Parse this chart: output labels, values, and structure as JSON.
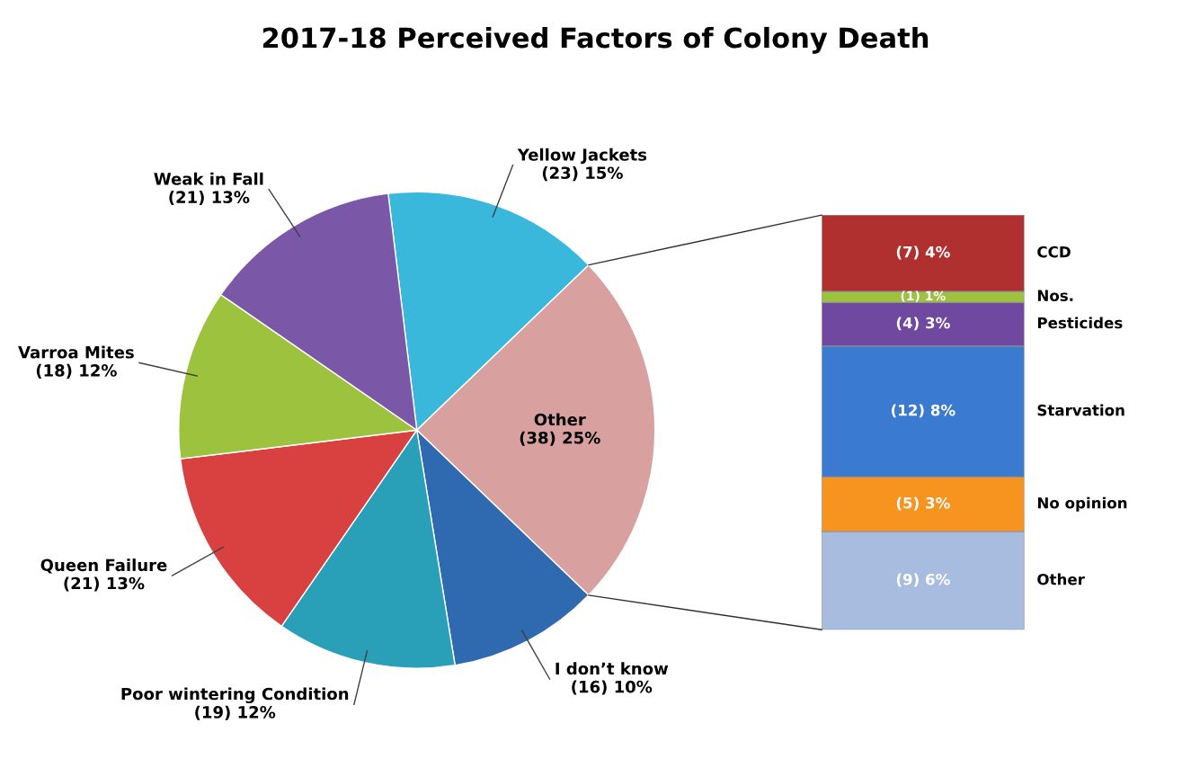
{
  "chart_data": [
    {
      "type": "pie",
      "title": "2017-18 Perceived Factors of Colony Death",
      "categories": [
        "Yellow Jackets",
        "Other",
        "I don’t know",
        "Poor wintering Condition",
        "Queen Failure",
        "Varroa Mites",
        "Weak in Fall"
      ],
      "values": [
        23,
        38,
        16,
        19,
        21,
        18,
        21
      ],
      "value_labels": [
        "(23) 15%",
        "(38) 25%",
        "(16) 10%",
        "(19) 12%",
        "(21) 13%",
        "(18) 12%",
        "(21) 13%"
      ],
      "colors": [
        "#3ab8dc",
        "#d9a0a0",
        "#2f6ab0",
        "#2a9fb8",
        "#d94040",
        "#9cc23e",
        "#7b57a8"
      ]
    },
    {
      "type": "bar",
      "stacked": true,
      "categories": [
        null
      ],
      "series": [
        {
          "name": "Other",
          "color": "#a8bce0",
          "values": [
            9
          ],
          "value_labels": [
            "(9) 6%"
          ]
        },
        {
          "name": "No opinion",
          "color": "#f79420",
          "values": [
            5
          ],
          "value_labels": [
            "(5) 3%"
          ]
        },
        {
          "name": "Starvation",
          "color": "#3a7ad0",
          "values": [
            12
          ],
          "value_labels": [
            "(12) 8%"
          ]
        },
        {
          "name": "Pesticides",
          "color": "#7048a0",
          "values": [
            4
          ],
          "value_labels": [
            "(4) 3%"
          ]
        },
        {
          "name": "Nos.",
          "color": "#9cc23e",
          "values": [
            1
          ],
          "value_labels": [
            "(1) 1%"
          ]
        },
        {
          "name": "CCD",
          "color": "#b03030",
          "values": [
            7
          ],
          "value_labels": [
            "(7) 4%"
          ]
        }
      ]
    }
  ]
}
